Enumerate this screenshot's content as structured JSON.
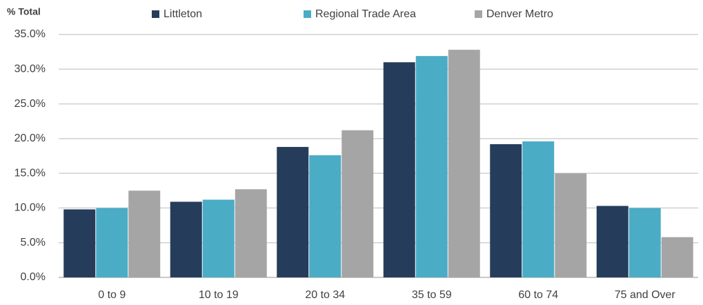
{
  "chart_data": {
    "type": "bar",
    "title": "% Total",
    "categories": [
      "0 to 9",
      "10 to 19",
      "20 to 34",
      "35 to 59",
      "60 to 74",
      "75 and Over"
    ],
    "series": [
      {
        "name": "Littleton",
        "color": "#253d5b",
        "values": [
          9.8,
          10.9,
          18.8,
          31.0,
          19.2,
          10.3
        ]
      },
      {
        "name": "Regional Trade Area",
        "color": "#4bacc6",
        "values": [
          10.0,
          11.2,
          17.6,
          31.9,
          19.6,
          10.0
        ]
      },
      {
        "name": "Denver Metro",
        "color": "#a5a5a5",
        "values": [
          12.5,
          12.7,
          21.2,
          32.8,
          15.0,
          5.8
        ]
      }
    ],
    "ylim": [
      0,
      35
    ],
    "yticks": [
      {
        "value": 0,
        "label": "0.0%"
      },
      {
        "value": 5,
        "label": "5.0%"
      },
      {
        "value": 10,
        "label": "10.0%"
      },
      {
        "value": 15,
        "label": "15.0%"
      },
      {
        "value": 20,
        "label": "20.0%"
      },
      {
        "value": 25,
        "label": "25.0%"
      },
      {
        "value": 30,
        "label": "30.0%"
      },
      {
        "value": 35,
        "label": "35.0%"
      }
    ],
    "grid": true,
    "legend": "top"
  }
}
